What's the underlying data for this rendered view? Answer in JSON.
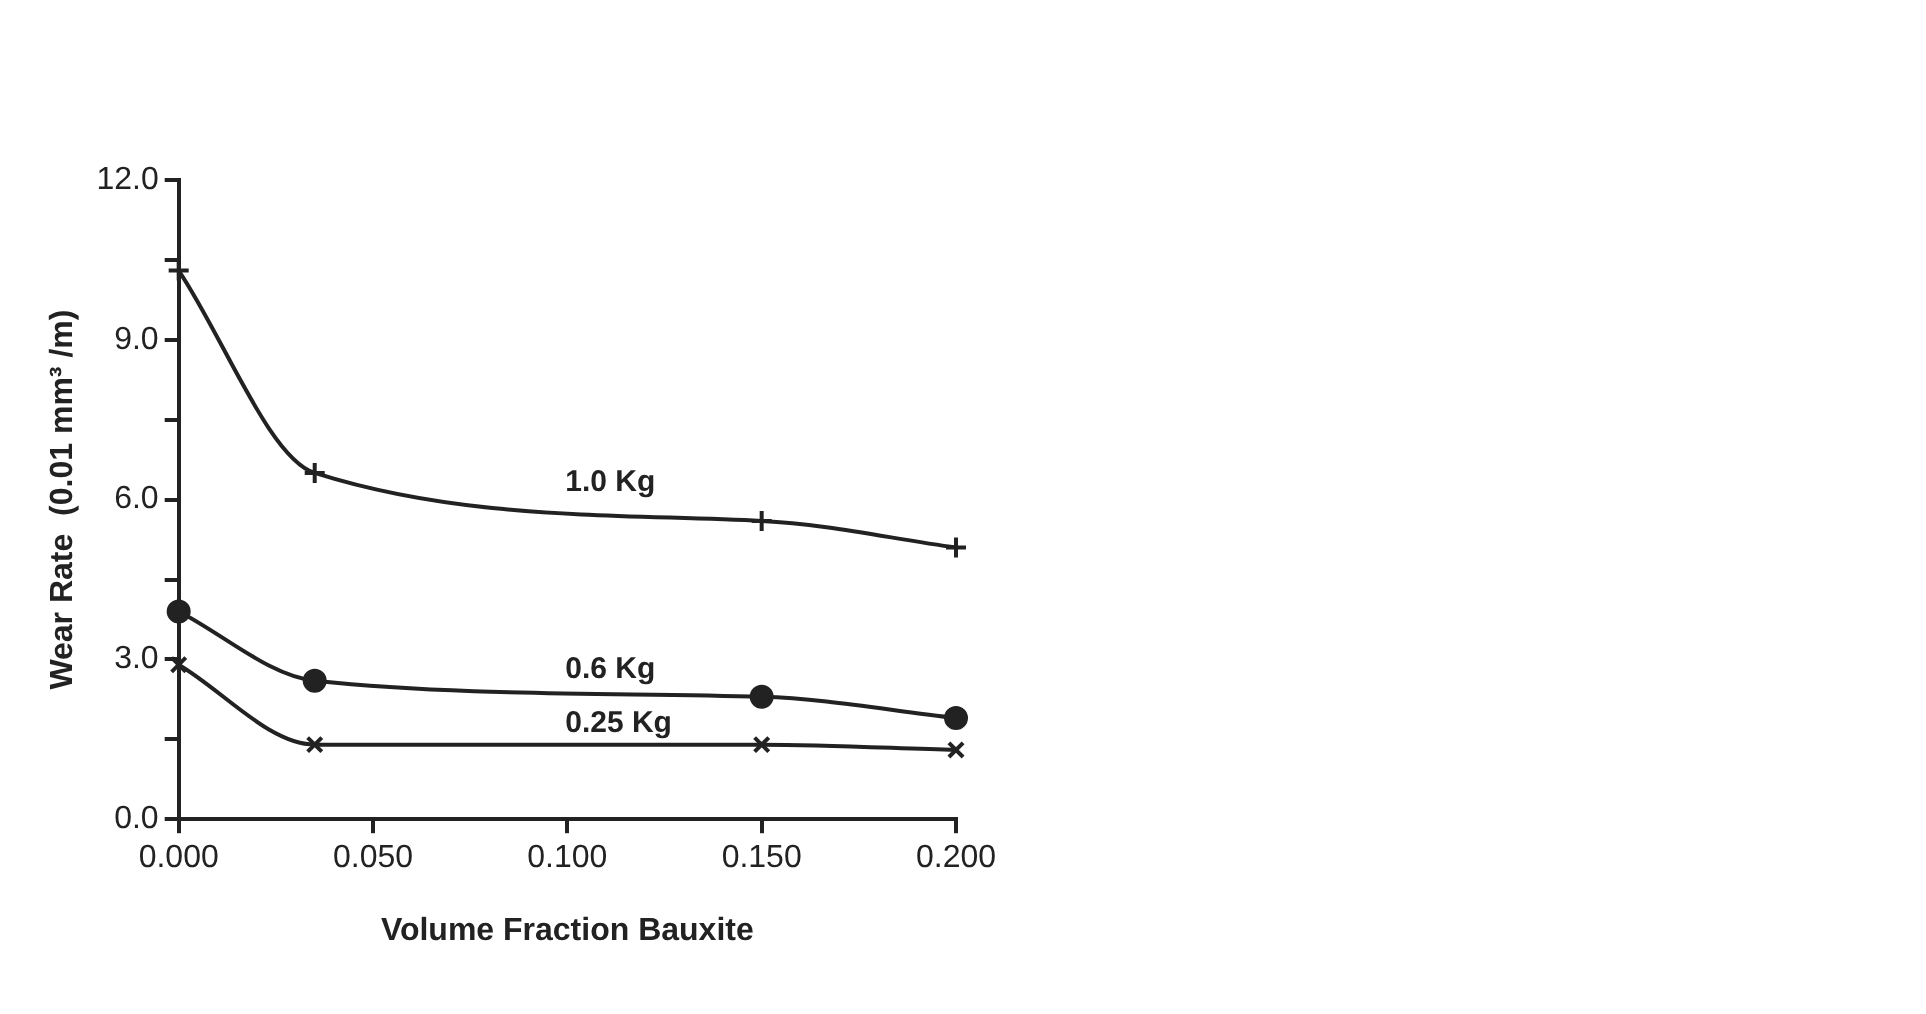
{
  "chart_data": {
    "type": "line",
    "xlabel": "Volume Fraction Bauxite",
    "ylabel": "Wear Rate  (0.01 mm³ /m)",
    "x": [
      0,
      0.035,
      0.15,
      0.2
    ],
    "series": [
      {
        "name": "1.0 Kg",
        "color": "#222222",
        "marker": "cross",
        "values": [
          10.3,
          6.5,
          5.6,
          5.1
        ]
      },
      {
        "name": "0.6 Kg",
        "color": "#222222",
        "marker": "circle",
        "values": [
          3.9,
          2.6,
          2.3,
          1.9
        ]
      },
      {
        "name": "0.25 Kg",
        "color": "#222222",
        "marker": "x",
        "values": [
          2.9,
          1.4,
          1.4,
          1.3
        ]
      }
    ],
    "xlim": [
      0,
      0.2
    ],
    "xticks": [
      {
        "value": 0,
        "label": "0.000"
      },
      {
        "value": 0.05,
        "label": "0.050"
      },
      {
        "value": 0.1,
        "label": "0.100"
      },
      {
        "value": 0.15,
        "label": "0.150"
      },
      {
        "value": 0.2,
        "label": "0.200"
      }
    ],
    "ylim": [
      0,
      12
    ],
    "yticks": [
      {
        "value": 0,
        "label": "0.0"
      },
      {
        "value": 1.5,
        "label": null
      },
      {
        "value": 3,
        "label": "3.0"
      },
      {
        "value": 4.5,
        "label": null
      },
      {
        "value": 6,
        "label": "6.0"
      },
      {
        "value": 7.5,
        "label": null
      },
      {
        "value": 9,
        "label": "9.0"
      },
      {
        "value": 10.5,
        "label": null
      },
      {
        "value": 12,
        "label": "12.0"
      }
    ],
    "grid": false,
    "legend": false,
    "line_style": "solid"
  }
}
